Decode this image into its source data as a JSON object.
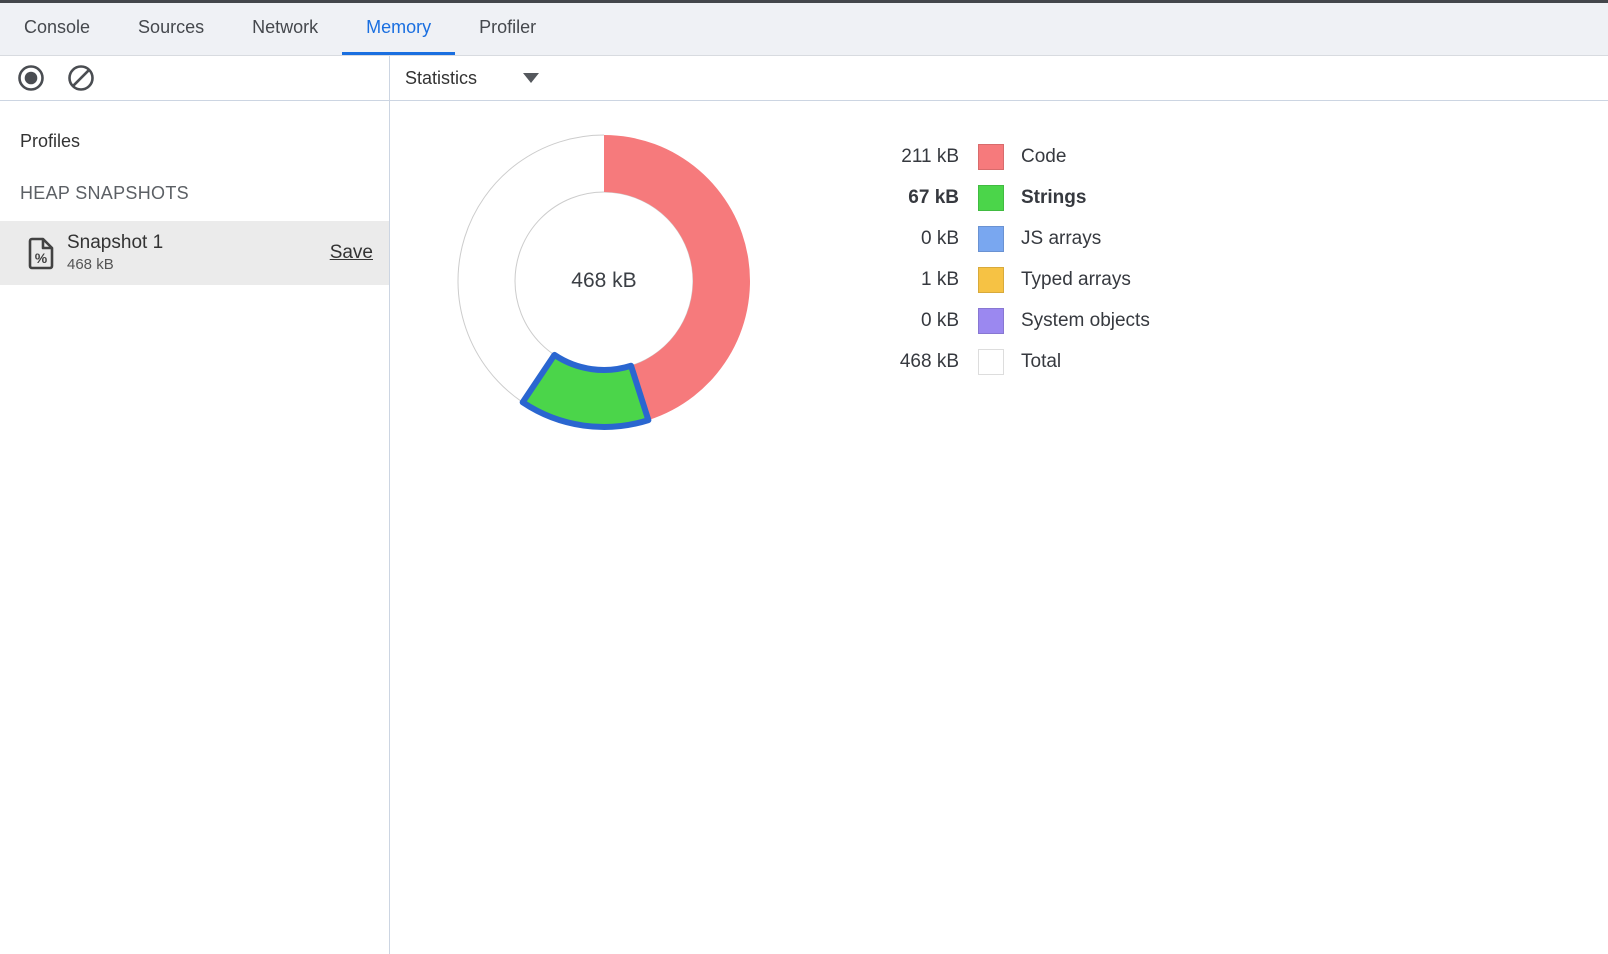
{
  "tabs": {
    "items": [
      {
        "label": "Console",
        "active": false
      },
      {
        "label": "Sources",
        "active": false
      },
      {
        "label": "Network",
        "active": false
      },
      {
        "label": "Memory",
        "active": true
      },
      {
        "label": "Profiler",
        "active": false
      }
    ]
  },
  "toolbar": {
    "record_icon": "record-icon",
    "clear_icon": "clear-icon",
    "statistics_label": "Statistics"
  },
  "sidebar": {
    "profiles_title": "Profiles",
    "section_title": "HEAP SNAPSHOTS",
    "snapshots": [
      {
        "name": "Snapshot 1",
        "size": "468 kB",
        "save_label": "Save",
        "selected": true
      }
    ]
  },
  "chart_data": {
    "type": "pie",
    "subtype": "donut",
    "center_label": "468 kB",
    "total_kb": 468,
    "unit": "kB",
    "legend_position": "right",
    "outer_radius": 146,
    "inner_radius": 89,
    "start_angle_deg": 0,
    "direction": "clockwise",
    "segments": [
      {
        "label": "Code",
        "value_kb": 211,
        "value_label": "211 kB",
        "color": "#f67a7c",
        "selected": false,
        "is_total": false
      },
      {
        "label": "Strings",
        "value_kb": 67,
        "value_label": "67 kB",
        "color": "#4bd54a",
        "selected": true,
        "is_total": false
      },
      {
        "label": "JS arrays",
        "value_kb": 0,
        "value_label": "0 kB",
        "color": "#79a7f0",
        "selected": false,
        "is_total": false
      },
      {
        "label": "Typed arrays",
        "value_kb": 1,
        "value_label": "1 kB",
        "color": "#f6c244",
        "selected": false,
        "is_total": false
      },
      {
        "label": "System objects",
        "value_kb": 0,
        "value_label": "0 kB",
        "color": "#9b88f0",
        "selected": false,
        "is_total": false
      },
      {
        "label": "Total",
        "value_kb": 468,
        "value_label": "468 kB",
        "color": "#ffffff",
        "selected": false,
        "is_total": true
      }
    ],
    "selection_border_color": "#2a66d0",
    "empty_outline_color": "#cccccc"
  },
  "colors": {
    "accent_blue": "#1a6fe0",
    "tabbar_bg": "#eff1f5",
    "divider": "#ccd5e2",
    "selected_row_bg": "#ebebeb",
    "icon_gray": "#4a4d52",
    "text": "#333333"
  }
}
